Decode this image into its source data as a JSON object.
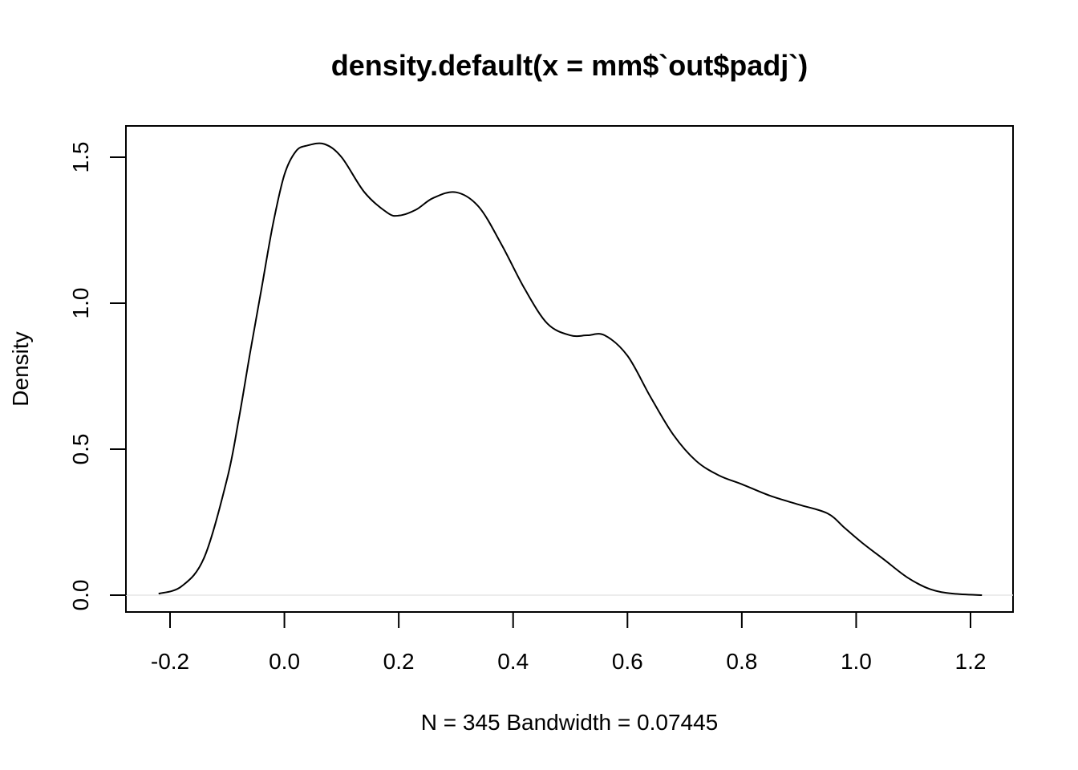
{
  "chart_data": {
    "type": "line",
    "title": "density.default(x = mm$`out$padj`)",
    "xlabel": "N = 345   Bandwidth = 0.07445",
    "ylabel": "Density",
    "xlim": [
      -0.22,
      1.22
    ],
    "ylim": [
      0,
      1.6
    ],
    "x_ticks": [
      -0.2,
      0.0,
      0.2,
      0.4,
      0.6,
      0.8,
      1.0,
      1.2
    ],
    "x_tick_labels": [
      "-0.2",
      "0.0",
      "0.2",
      "0.4",
      "0.6",
      "0.8",
      "1.0",
      "1.2"
    ],
    "y_ticks": [
      0.0,
      0.5,
      1.0,
      1.5
    ],
    "y_tick_labels": [
      "0.0",
      "0.5",
      "1.0",
      "1.5"
    ],
    "grid": false,
    "series": [
      {
        "x": [
          -0.22,
          -0.18,
          -0.14,
          -0.1,
          -0.08,
          -0.06,
          -0.04,
          -0.02,
          0.0,
          0.02,
          0.04,
          0.07,
          0.1,
          0.14,
          0.18,
          0.2,
          0.23,
          0.26,
          0.3,
          0.34,
          0.38,
          0.42,
          0.46,
          0.5,
          0.53,
          0.56,
          0.6,
          0.64,
          0.68,
          0.72,
          0.76,
          0.8,
          0.85,
          0.9,
          0.95,
          0.98,
          1.01,
          1.05,
          1.09,
          1.13,
          1.17,
          1.22
        ],
        "y": [
          0.005,
          0.03,
          0.13,
          0.4,
          0.6,
          0.83,
          1.05,
          1.27,
          1.44,
          1.52,
          1.54,
          1.545,
          1.5,
          1.38,
          1.31,
          1.3,
          1.32,
          1.36,
          1.38,
          1.33,
          1.2,
          1.05,
          0.93,
          0.89,
          0.89,
          0.89,
          0.82,
          0.68,
          0.55,
          0.46,
          0.41,
          0.38,
          0.34,
          0.31,
          0.28,
          0.23,
          0.18,
          0.12,
          0.06,
          0.02,
          0.005,
          0.0
        ]
      }
    ]
  }
}
